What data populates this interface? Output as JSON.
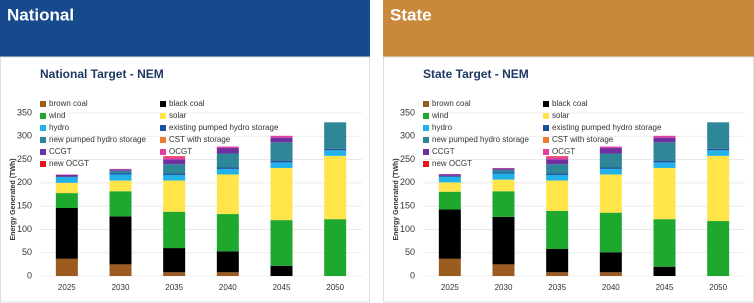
{
  "chart_data": [
    {
      "type": "bar",
      "header": "National",
      "title": "National Target  -  NEM",
      "ylabel": "Energy Generated (TWh)",
      "categories": [
        "2025",
        "2030",
        "2035",
        "2040",
        "2045",
        "2050"
      ],
      "ylim": [
        0,
        350
      ],
      "yticks": [
        0,
        50,
        100,
        150,
        200,
        250,
        300,
        350
      ],
      "grid": true,
      "stacked": true,
      "series": [
        {
          "name": "brown coal",
          "color": "#9c5b1f",
          "values": [
            37,
            25,
            8,
            8,
            0,
            0
          ]
        },
        {
          "name": "black coal",
          "color": "#000000",
          "values": [
            109,
            103,
            52,
            45,
            22,
            0
          ]
        },
        {
          "name": "wind",
          "color": "#1ea82d",
          "values": [
            32,
            54,
            78,
            80,
            98,
            122
          ]
        },
        {
          "name": "solar",
          "color": "#ffe54a",
          "values": [
            22,
            23,
            67,
            85,
            112,
            136
          ]
        },
        {
          "name": "hydro",
          "color": "#22b1e8",
          "values": [
            12,
            13,
            12,
            12,
            12,
            12
          ]
        },
        {
          "name": "existing pumped hydro storage",
          "color": "#1f4e9c",
          "values": [
            2,
            3,
            3,
            3,
            3,
            3
          ]
        },
        {
          "name": "new pumped hydro storage",
          "color": "#2e8797",
          "values": [
            0,
            5,
            20,
            30,
            40,
            57
          ]
        },
        {
          "name": "CST with storage",
          "color": "#f07a2d",
          "values": [
            0,
            0,
            0,
            0,
            0,
            0
          ]
        },
        {
          "name": "CCGT",
          "color": "#7030a0",
          "values": [
            3,
            3,
            10,
            12,
            10,
            0
          ]
        },
        {
          "name": "OCGT",
          "color": "#e040a0",
          "values": [
            1,
            1,
            5,
            3,
            4,
            0
          ]
        },
        {
          "name": "new OCGT",
          "color": "#e8141b",
          "values": [
            0,
            0,
            2,
            0,
            0,
            0
          ]
        }
      ]
    },
    {
      "type": "bar",
      "header": "State",
      "title": "State Target  -  NEM",
      "ylabel": "Energy Generated (TWh)",
      "categories": [
        "2025",
        "2030",
        "2035",
        "2040",
        "2045",
        "2050"
      ],
      "ylim": [
        0,
        350
      ],
      "yticks": [
        0,
        50,
        100,
        150,
        200,
        250,
        300,
        350
      ],
      "grid": true,
      "stacked": true,
      "series": [
        {
          "name": "brown coal",
          "color": "#9c5b1f",
          "values": [
            37,
            25,
            8,
            8,
            0,
            0
          ]
        },
        {
          "name": "black coal",
          "color": "#000000",
          "values": [
            106,
            102,
            50,
            43,
            20,
            0
          ]
        },
        {
          "name": "wind",
          "color": "#1ea82d",
          "values": [
            38,
            55,
            82,
            85,
            102,
            118
          ]
        },
        {
          "name": "solar",
          "color": "#ffe54a",
          "values": [
            20,
            25,
            65,
            82,
            110,
            140
          ]
        },
        {
          "name": "hydro",
          "color": "#22b1e8",
          "values": [
            12,
            13,
            12,
            12,
            12,
            12
          ]
        },
        {
          "name": "existing pumped hydro storage",
          "color": "#1f4e9c",
          "values": [
            2,
            3,
            3,
            3,
            3,
            3
          ]
        },
        {
          "name": "new pumped hydro storage",
          "color": "#2e8797",
          "values": [
            0,
            5,
            20,
            30,
            40,
            57
          ]
        },
        {
          "name": "CST with storage",
          "color": "#f07a2d",
          "values": [
            0,
            0,
            0,
            0,
            0,
            0
          ]
        },
        {
          "name": "CCGT",
          "color": "#7030a0",
          "values": [
            3,
            3,
            10,
            12,
            10,
            0
          ]
        },
        {
          "name": "OCGT",
          "color": "#e040a0",
          "values": [
            1,
            1,
            5,
            3,
            4,
            0
          ]
        },
        {
          "name": "new OCGT",
          "color": "#e8141b",
          "values": [
            0,
            0,
            2,
            0,
            0,
            0
          ]
        }
      ]
    }
  ]
}
